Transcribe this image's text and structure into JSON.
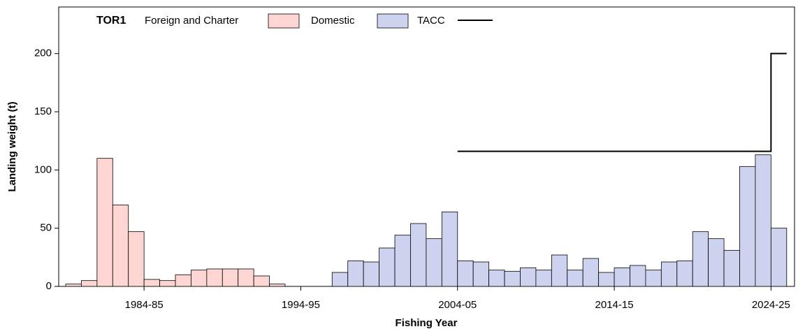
{
  "chart_data": {
    "type": "bar",
    "legend_title": "TOR1",
    "x_label": "Fishing Year",
    "y_label": "Landing weight (t)",
    "categories": [
      null,
      null,
      null,
      null,
      null,
      "1984-85",
      null,
      null,
      null,
      null,
      null,
      null,
      null,
      null,
      null,
      "1994-95",
      null,
      null,
      null,
      null,
      null,
      null,
      null,
      null,
      null,
      "2004-05",
      null,
      null,
      null,
      null,
      null,
      null,
      null,
      null,
      null,
      "2014-15",
      null,
      null,
      null,
      null,
      null,
      null,
      null,
      null,
      null,
      "2024-25"
    ],
    "series": [
      {
        "name": "Foreign and Charter",
        "color": "#fdd5d2",
        "values": [
          2,
          5,
          110,
          70,
          47,
          6,
          5,
          10,
          14,
          15,
          15,
          15,
          9,
          2,
          null,
          null,
          null,
          null,
          null,
          null,
          null,
          null,
          null,
          null,
          null,
          null,
          null,
          null,
          null,
          null,
          null,
          null,
          null,
          null,
          null,
          null,
          null,
          null,
          null,
          null,
          null,
          null,
          null,
          null,
          null,
          null
        ]
      },
      {
        "name": "Domestic",
        "color": "#cdd3ee",
        "values": [
          null,
          null,
          null,
          null,
          null,
          null,
          null,
          null,
          null,
          null,
          null,
          null,
          null,
          null,
          null,
          null,
          null,
          12,
          22,
          21,
          33,
          44,
          54,
          41,
          64,
          22,
          21,
          14,
          13,
          16,
          14,
          27,
          14,
          24,
          12,
          16,
          18,
          14,
          21,
          22,
          47,
          41,
          31,
          103,
          113,
          50
        ]
      },
      {
        "name": "TACC",
        "color": "#000000",
        "kind": "step",
        "values": [
          null,
          null,
          null,
          null,
          null,
          null,
          null,
          null,
          null,
          null,
          null,
          null,
          null,
          null,
          null,
          null,
          null,
          null,
          null,
          null,
          null,
          null,
          null,
          null,
          null,
          116,
          116,
          116,
          116,
          116,
          116,
          116,
          116,
          116,
          116,
          116,
          116,
          116,
          116,
          116,
          116,
          116,
          116,
          116,
          116,
          200
        ]
      }
    ],
    "ylim": [
      0,
      240
    ],
    "yticks": [
      0,
      50,
      100,
      150,
      200
    ]
  }
}
